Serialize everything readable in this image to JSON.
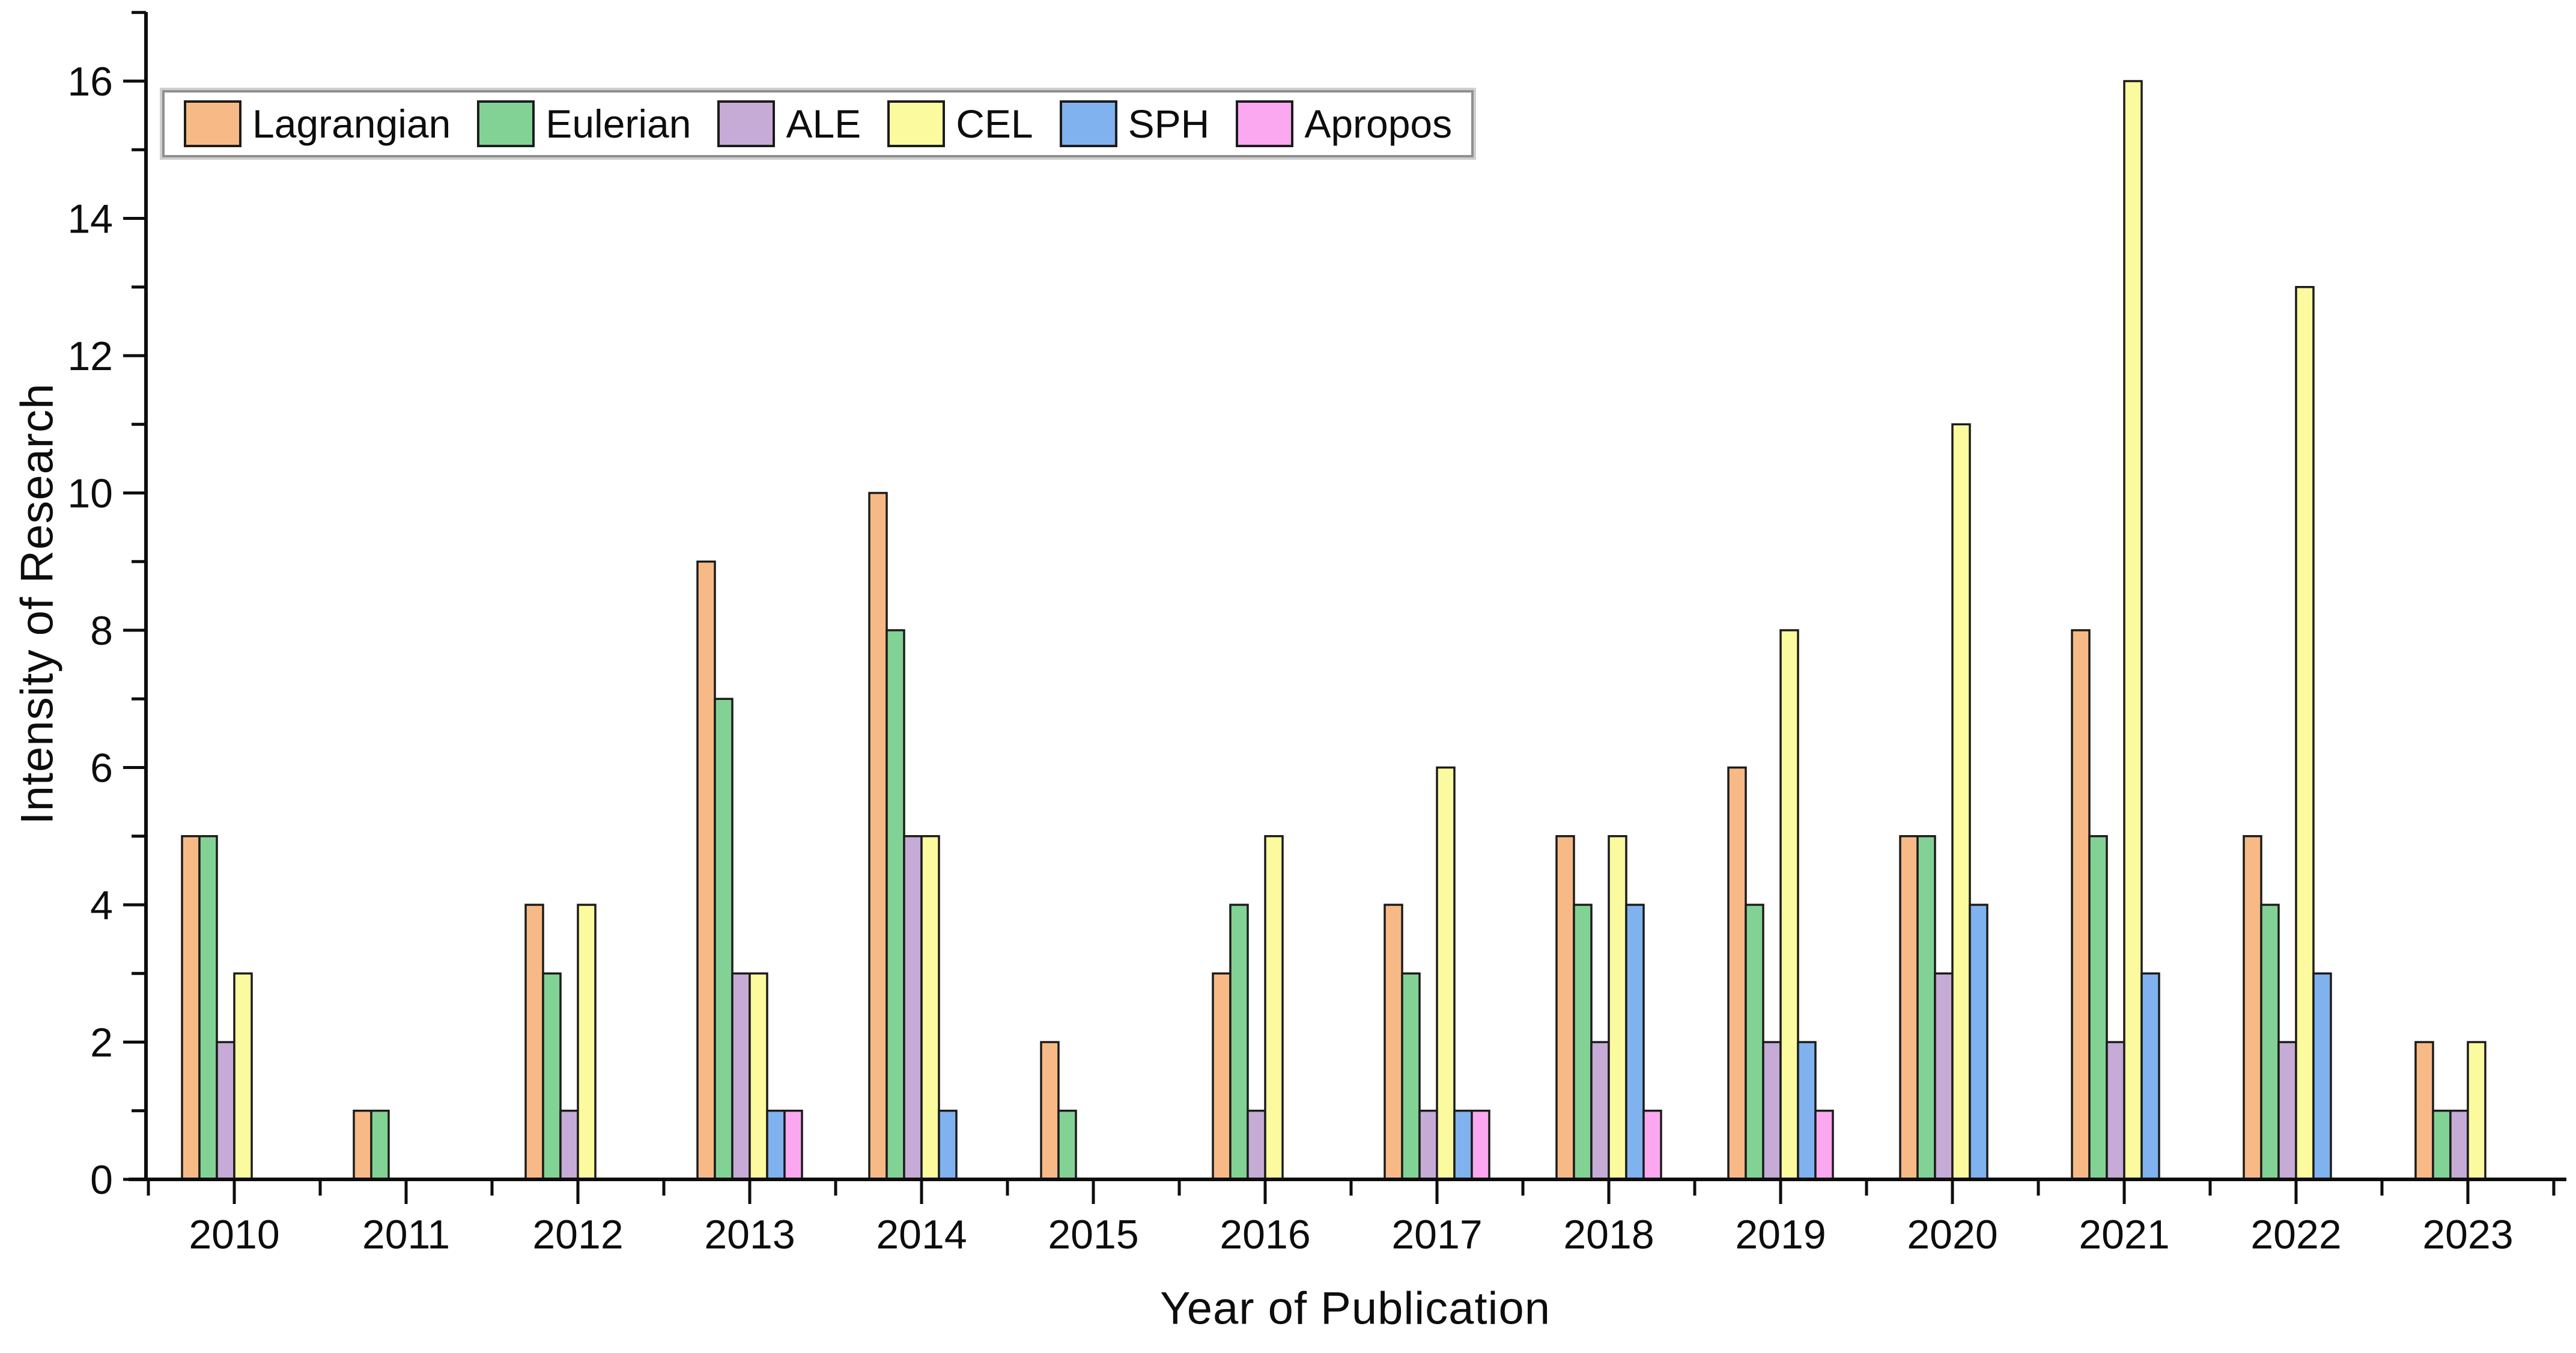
{
  "figure": {
    "background": "#ffffff",
    "axis_color": "#0d0d0d"
  },
  "chart_data": {
    "type": "bar",
    "title": "",
    "xlabel": "Year of Publication",
    "ylabel": "Intensity of Research",
    "categories": [
      "2010",
      "2011",
      "2012",
      "2013",
      "2014",
      "2015",
      "2016",
      "2017",
      "2018",
      "2019",
      "2020",
      "2021",
      "2022",
      "2023"
    ],
    "series": [
      {
        "name": "Lagrangian",
        "color": "#F7BA87",
        "values": [
          5,
          1,
          4,
          9,
          10,
          2,
          3,
          4,
          5,
          6,
          5,
          8,
          5,
          2
        ]
      },
      {
        "name": "Eulerian",
        "color": "#83D295",
        "values": [
          5,
          1,
          3,
          7,
          8,
          1,
          4,
          3,
          4,
          4,
          5,
          5,
          4,
          1
        ]
      },
      {
        "name": "ALE",
        "color": "#C5ABD6",
        "values": [
          2,
          0,
          1,
          3,
          5,
          0,
          1,
          1,
          2,
          2,
          3,
          2,
          2,
          1
        ]
      },
      {
        "name": "CEL",
        "color": "#FBFA9E",
        "values": [
          3,
          0,
          4,
          3,
          5,
          0,
          5,
          6,
          5,
          8,
          11,
          16,
          13,
          2
        ]
      },
      {
        "name": "SPH",
        "color": "#7FB2EE",
        "values": [
          0,
          0,
          0,
          1,
          1,
          0,
          0,
          1,
          4,
          2,
          4,
          3,
          3,
          0
        ]
      },
      {
        "name": "Apropos",
        "color": "#FBA8F0",
        "values": [
          0,
          0,
          0,
          1,
          0,
          0,
          0,
          1,
          1,
          1,
          0,
          0,
          0,
          0
        ]
      }
    ],
    "ylim": [
      0,
      16
    ],
    "yticks": [
      0,
      2,
      4,
      6,
      8,
      10,
      12,
      14,
      16
    ],
    "ytick_minor_step": 2,
    "grid": false,
    "legend_position": "top-left",
    "bar_edge_color": "#1c1c1c",
    "legend_border_color": "#8f8f8f"
  }
}
